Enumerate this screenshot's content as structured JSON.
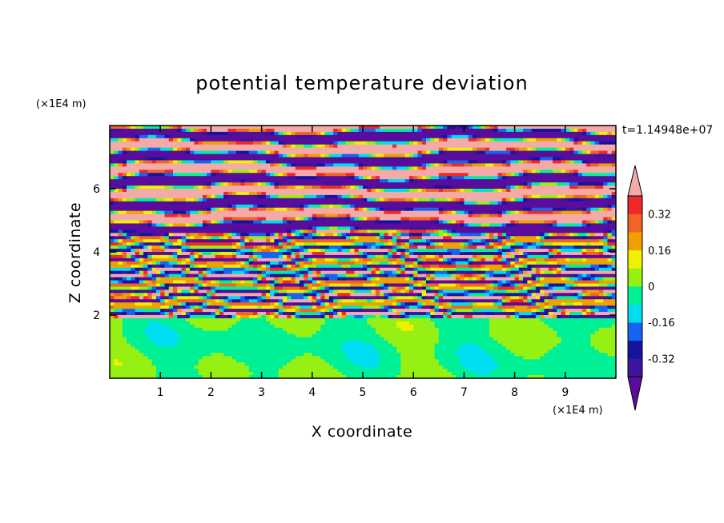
{
  "chart_data": {
    "type": "heatmap",
    "title": "potential temperature deviation",
    "xlabel": "X coordinate",
    "ylabel": "Z coordinate",
    "x_unit": "(×1E4 m)",
    "y_unit": "(×1E4 m)",
    "time_label": "t=1.14948e+07",
    "xlim": [
      0,
      10
    ],
    "ylim": [
      0,
      8
    ],
    "x_ticks": [
      "1",
      "2",
      "3",
      "4",
      "5",
      "6",
      "7",
      "8",
      "9"
    ],
    "y_ticks": [
      "2",
      "4",
      "6"
    ],
    "colorbar": {
      "levels": [
        -0.4,
        -0.32,
        -0.24,
        -0.16,
        -0.08,
        0,
        0.08,
        0.16,
        0.24,
        0.32,
        0.4
      ],
      "tick_labels": [
        "0.32",
        "0.16",
        "0",
        "-0.16",
        "-0.32"
      ],
      "tick_values": [
        0.32,
        0.16,
        0,
        -0.16,
        -0.32
      ],
      "colors": [
        "#5a0d9c",
        "#3c149e",
        "#1414a0",
        "#1464f0",
        "#00dcf0",
        "#00f096",
        "#96f014",
        "#f0f000",
        "#f0a000",
        "#f06428",
        "#f02828",
        "#f5aaaa"
      ],
      "extend": "both"
    },
    "regions": [
      {
        "zmin": 0.0,
        "zmax": 1.9,
        "pattern": "near-zero mixed layer",
        "dominant_values": [
          0.04,
          -0.04
        ]
      },
      {
        "zmin": 1.9,
        "zmax": 4.6,
        "pattern": "thin alternating layers",
        "dominant_values": [
          -0.4,
          0.3,
          -0.1,
          0.2,
          -0.3
        ]
      },
      {
        "zmin": 4.6,
        "zmax": 8.0,
        "pattern": "thick alternating strata",
        "dominant_values": [
          0.4,
          -0.4
        ]
      }
    ]
  }
}
